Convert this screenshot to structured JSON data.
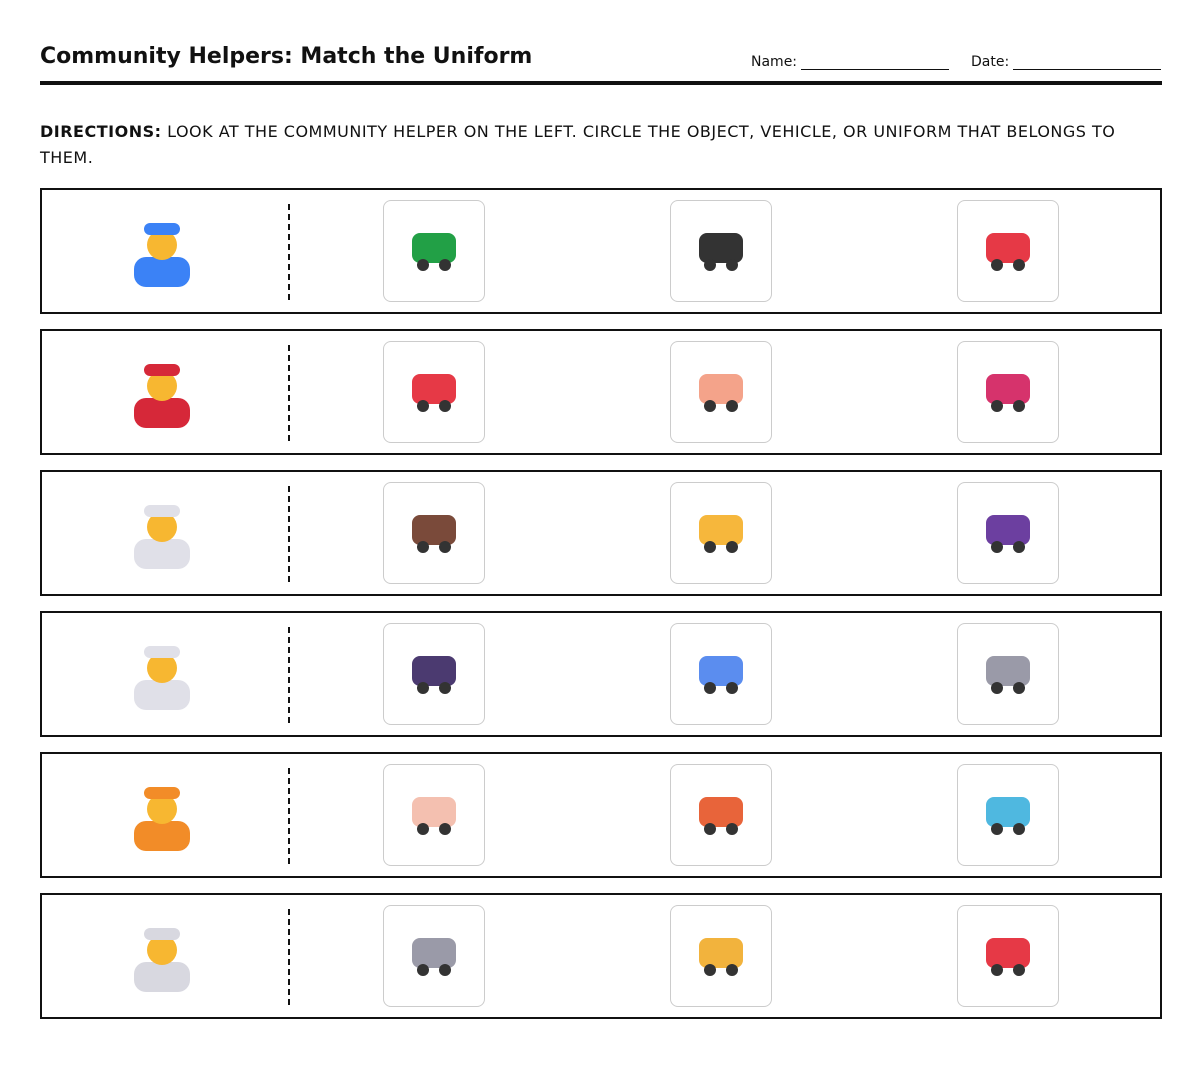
{
  "header": {
    "title": "Community Helpers: Match the Uniform",
    "name_label": "Name:",
    "date_label": "Date:"
  },
  "directions": {
    "label": "DIRECTIONS:",
    "text": " LOOK AT THE COMMUNITY HELPER ON THE LEFT. CIRCLE THE OBJECT, VEHICLE, OR UNIFORM THAT BELONGS TO THEM."
  },
  "rows": [
    {
      "helper": {
        "icon": "police-officer-icon",
        "color": "#3b82f6"
      },
      "options": [
        {
          "icon": "tractor-icon",
          "color": "#22a046"
        },
        {
          "icon": "police-car-icon",
          "color": "#333333"
        },
        {
          "icon": "ambulance-icon",
          "color": "#e63946"
        }
      ]
    },
    {
      "helper": {
        "icon": "firefighter-icon",
        "color": "#d62839"
      },
      "options": [
        {
          "icon": "fire-extinguisher-icon",
          "color": "#e63946"
        },
        {
          "icon": "artist-palette-icon",
          "color": "#f4a38a"
        },
        {
          "icon": "guitar-icon",
          "color": "#d6336c"
        }
      ]
    },
    {
      "helper": {
        "icon": "doctor-icon",
        "color": "#e0e0e8"
      },
      "options": [
        {
          "icon": "hammer-icon",
          "color": "#7a4a3a"
        },
        {
          "icon": "pizza-icon",
          "color": "#f6b73c"
        },
        {
          "icon": "stethoscope-icon",
          "color": "#6c3fa0"
        }
      ]
    },
    {
      "helper": {
        "icon": "cook-icon",
        "color": "#e0e0e8"
      },
      "options": [
        {
          "icon": "frying-pan-icon",
          "color": "#4b3a70"
        },
        {
          "icon": "airplane-icon",
          "color": "#5b8def"
        },
        {
          "icon": "microscope-icon",
          "color": "#9a9aa8"
        }
      ]
    },
    {
      "helper": {
        "icon": "construction-worker-icon",
        "color": "#f28c28"
      },
      "options": [
        {
          "icon": "baby-bottle-icon",
          "color": "#f4c0b0"
        },
        {
          "icon": "bricks-icon",
          "color": "#e8643a"
        },
        {
          "icon": "kick-scooter-icon",
          "color": "#4fb8e0"
        }
      ]
    },
    {
      "helper": {
        "icon": "astronaut-icon",
        "color": "#d8d8e0"
      },
      "options": [
        {
          "icon": "shower-head-icon",
          "color": "#9a9aa8"
        },
        {
          "icon": "bus-icon",
          "color": "#f2b33d"
        },
        {
          "icon": "rocket-icon",
          "color": "#e63946"
        }
      ]
    }
  ]
}
